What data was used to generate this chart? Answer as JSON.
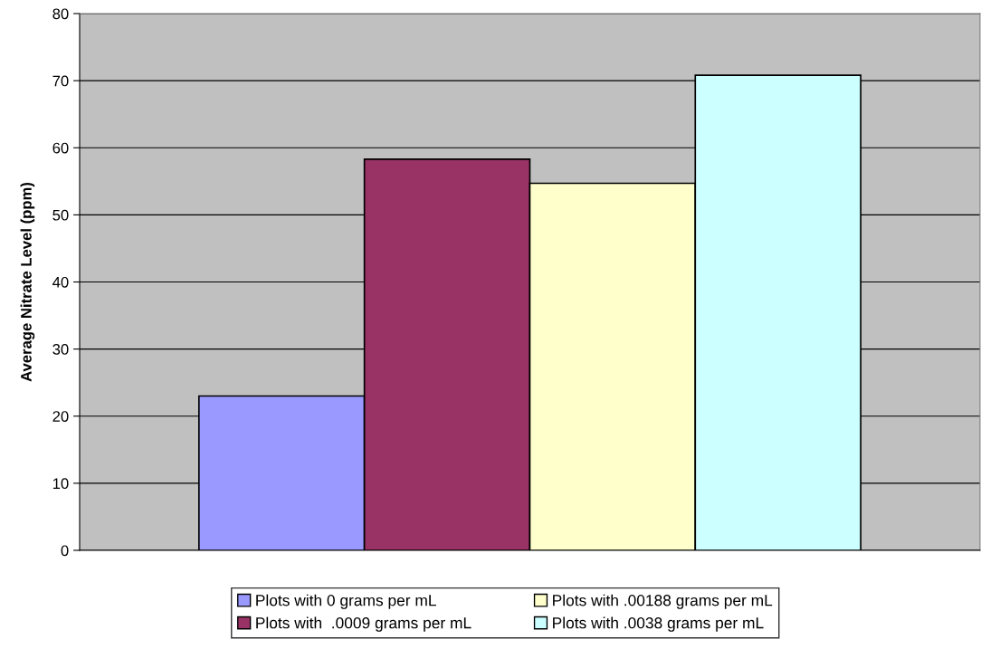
{
  "chart_data": {
    "type": "bar",
    "ylabel": "Average Nitrate Level (ppm)",
    "categories": [
      null
    ],
    "series": [
      {
        "name": "Plots with 0 grams per mL",
        "color": "#9999ff",
        "values": [
          23
        ]
      },
      {
        "name": "Plots with  .0009 grams per mL",
        "color": "#993366",
        "values": [
          58.3
        ]
      },
      {
        "name": "Plots with .00188 grams per mL",
        "color": "#ffffcc",
        "values": [
          54.7
        ]
      },
      {
        "name": "Plots with .0038 grams per mL",
        "color": "#ccffff",
        "values": [
          70.8
        ]
      }
    ],
    "ylim": [
      0,
      80
    ],
    "yticks": [
      0,
      10,
      20,
      30,
      40,
      50,
      60,
      70,
      80
    ],
    "grid": "y",
    "legend": "bottom"
  }
}
